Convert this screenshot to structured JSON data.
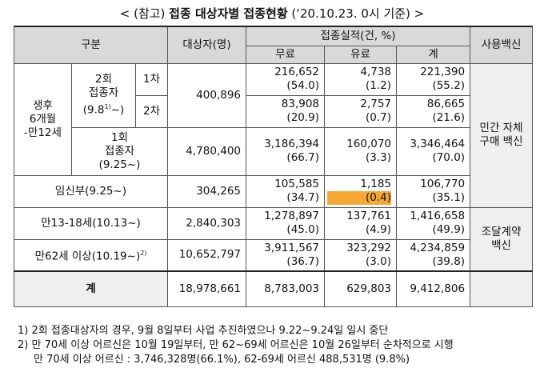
{
  "title": {
    "prefix": "< (참고) ",
    "bold": "접종 대상자별 접종현황",
    "suffix": " (‘20.10.23. 0시 기준) >"
  },
  "header": {
    "category": "구분",
    "target": "대상자(명)",
    "performance": "접종실적(건, %)",
    "free": "무료",
    "paid": "유료",
    "total": "계",
    "vaccine": "사용백신"
  },
  "rows": {
    "infant_group": "생후\n6개월\n-만12세",
    "two_dose": "2회\n접종자\n(9.8",
    "two_dose_sup": "1)",
    "two_dose_end": "~)",
    "dose1": "1차",
    "dose2": "2차",
    "two_dose_target": "400,896",
    "r1": {
      "free": "216,652",
      "free_pct": "(54.0)",
      "paid": "4,738",
      "paid_pct": "(1.2)",
      "total": "221,390",
      "total_pct": "(55.2)"
    },
    "r2": {
      "free": "83,908",
      "free_pct": "(20.9)",
      "paid": "2,757",
      "paid_pct": "(0.7)",
      "total": "86,665",
      "total_pct": "(21.6)"
    },
    "one_dose": "1회\n접종자\n(9.25~)",
    "one_dose_target": "4,780,400",
    "r3": {
      "free": "3,186,394",
      "free_pct": "(66.7)",
      "paid": "160,070",
      "paid_pct": "(3.3)",
      "total": "3,346,464",
      "total_pct": "(70.0)"
    },
    "pregnant": "임신부(9.25~)",
    "pregnant_target": "304,265",
    "r4": {
      "free": "105,585",
      "free_pct": "(34.7)",
      "paid": "1,185",
      "paid_pct": "(0.4)",
      "total": "106,770",
      "total_pct": "(35.1)"
    },
    "teen": "만13-18세(10.13~)",
    "teen_target": "2,840,303",
    "r5": {
      "free": "1,278,897",
      "free_pct": "(45.0)",
      "paid": "137,761",
      "paid_pct": "(4.9)",
      "total": "1,416,658",
      "total_pct": "(49.9)"
    },
    "elder": "만62세 이상(10.19~)",
    "elder_sup": "2)",
    "elder_target": "10,652,797",
    "r6": {
      "free": "3,911,567",
      "free_pct": "(36.7)",
      "paid": "323,292",
      "paid_pct": "(3.0)",
      "total": "4,234,859",
      "total_pct": "(39.8)"
    },
    "sum_label": "계",
    "sum_target": "18,978,661",
    "sum": {
      "free": "8,783,003",
      "paid": "629,803",
      "total": "9,412,806"
    },
    "vaccine1": "민간 자체\n구매 백신",
    "vaccine2": "조달계약\n백신"
  },
  "notes": {
    "n1": "1) 2회 접종대상자의 경우, 9월 8일부터 사업 추진하였으나 9.22~9.24일 일시 중단",
    "n2": "2) 만 70세 이상 어르신은 10월 19일부터, 만 62~69세 어르신은 10월 26일부터 순차적으로 시행",
    "n3": "만 70세 이상 어르신 : 3,746,328명(66.1%), 62-69세 어르신 488,531명 (9.8%)"
  }
}
